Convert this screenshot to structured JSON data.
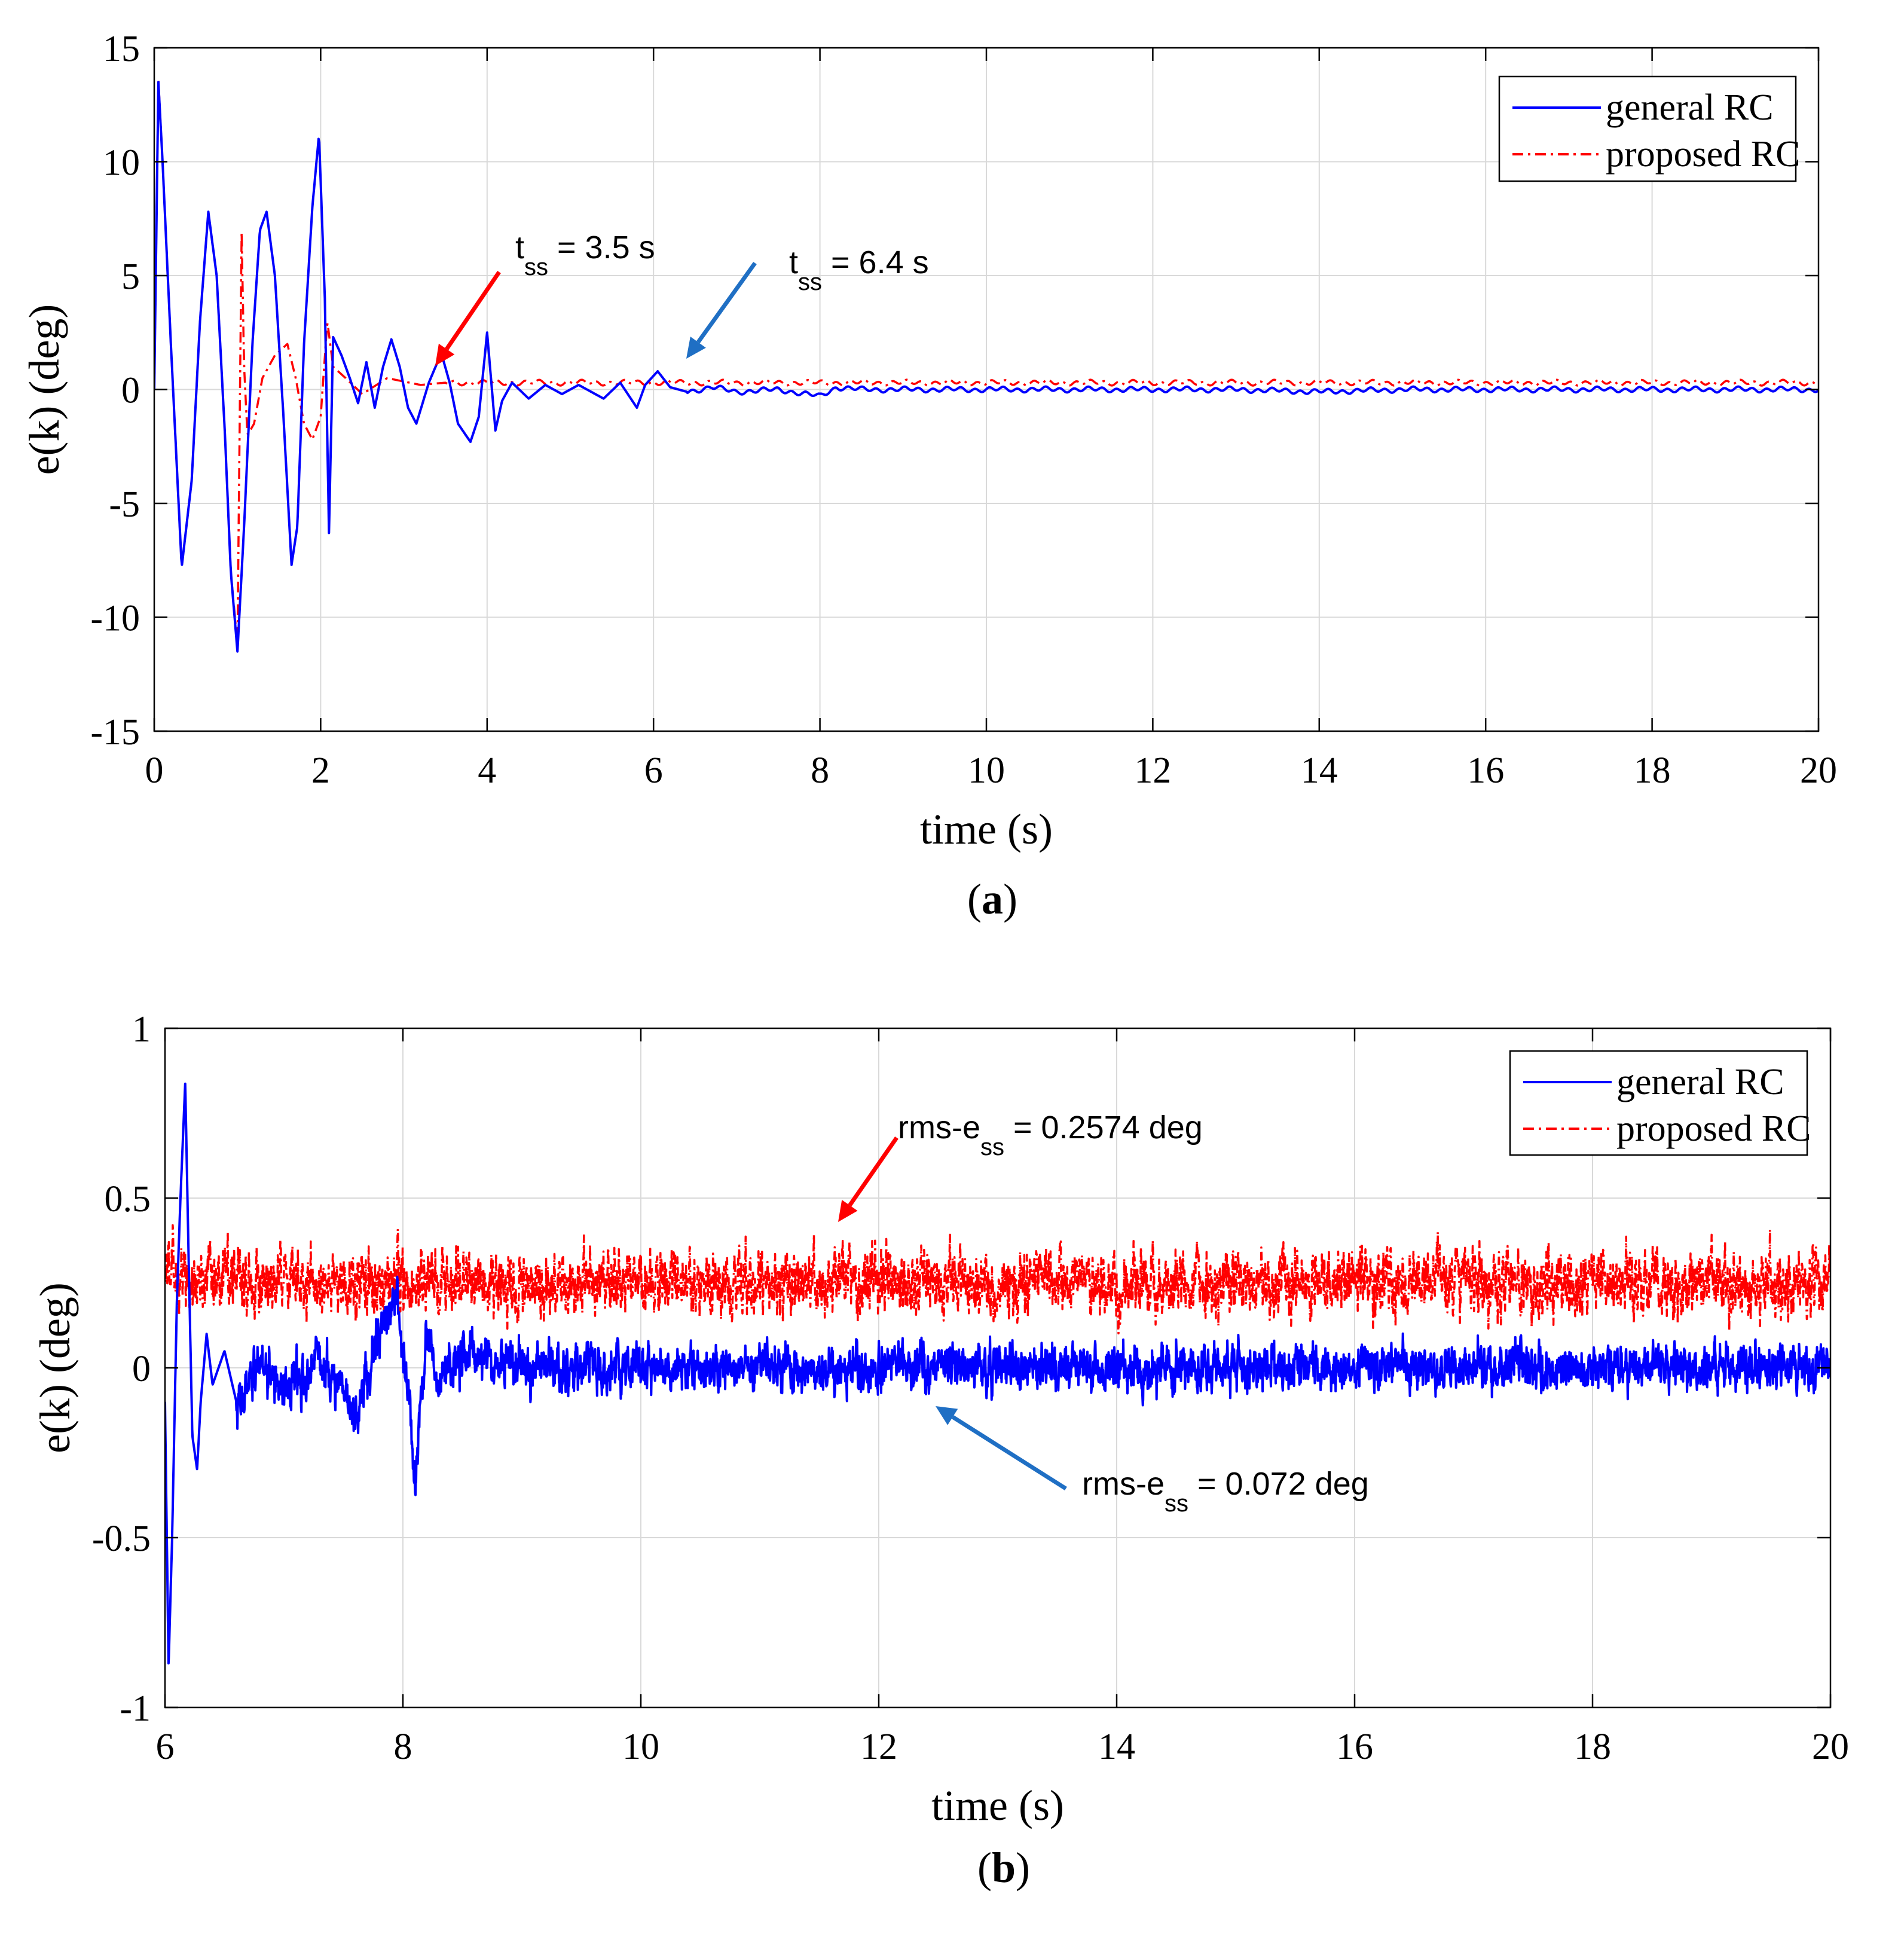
{
  "colors": {
    "general": "#0000ff",
    "proposed": "#ff0000",
    "arrow_red": "#ff0000",
    "arrow_blue": "#1f6fc4",
    "grid": "#d9d9d9",
    "axis": "#000000"
  },
  "chart_data": [
    {
      "type": "line",
      "panel_label": "a",
      "title": "",
      "xlabel": "time (s)",
      "ylabel": "e(k) (deg)",
      "xlim": [
        0,
        20
      ],
      "ylim": [
        -15,
        15
      ],
      "xticks": [
        0,
        2,
        4,
        6,
        8,
        10,
        12,
        14,
        16,
        18,
        20
      ],
      "yticks": [
        15,
        10,
        5,
        0,
        -5,
        -10,
        -15
      ],
      "grid": true,
      "legend_position": "top-right",
      "series": [
        {
          "name": "general RC",
          "style": "solid",
          "color": "#0000ff",
          "x": [
            0,
            0.05,
            0.1,
            0.2,
            0.33,
            0.45,
            0.55,
            0.65,
            0.75,
            0.85,
            0.92,
            1.0,
            1.08,
            1.18,
            1.27,
            1.35,
            1.45,
            1.55,
            1.65,
            1.72,
            1.8,
            1.9,
            1.98,
            2.05,
            2.1,
            2.15,
            2.25,
            2.35,
            2.45,
            2.55,
            2.65,
            2.75,
            2.85,
            2.95,
            3.05,
            3.15,
            3.3,
            3.45,
            3.55,
            3.65,
            3.8,
            3.9,
            4.0,
            4.1,
            4.18,
            4.3,
            4.5,
            4.7,
            4.9,
            5.1,
            5.4,
            5.6,
            5.8,
            5.9,
            6.05,
            6.2,
            6.4,
            6.7,
            7.0,
            7.5,
            8.0,
            8.2,
            8.5,
            9.0,
            10.0,
            11.0,
            12.0,
            13.0,
            14.0,
            15.0,
            16.0,
            17.0,
            18.0,
            19.0,
            20.0
          ],
          "values": [
            0,
            13.5,
            10,
            2,
            -7.8,
            -4,
            3,
            7.8,
            5,
            -2,
            -8,
            -11.5,
            -6,
            2,
            7,
            7.8,
            5,
            -1,
            -7.7,
            -6,
            2,
            8,
            11.2,
            4,
            -6.3,
            2.3,
            1.5,
            0.5,
            -0.6,
            1.2,
            -0.8,
            1,
            2.2,
            1,
            -0.8,
            -1.5,
            0.3,
            1.6,
            0.3,
            -1.5,
            -2.3,
            -1.2,
            2.5,
            -1.8,
            -0.5,
            0.3,
            -0.4,
            0.2,
            -0.2,
            0.2,
            -0.4,
            0.3,
            -0.8,
            0.2,
            0.8,
            0.1,
            -0.1,
            0.1,
            -0.1,
            0,
            -0.3,
            0.1,
            0,
            0,
            0,
            0,
            0,
            0,
            -0.1,
            0,
            0,
            0,
            0,
            0,
            0
          ]
        },
        {
          "name": "proposed RC",
          "style": "dashdot",
          "color": "#ff0000",
          "x": [
            0,
            0.05,
            0.1,
            0.2,
            0.33,
            0.45,
            0.55,
            0.65,
            0.75,
            0.85,
            0.92,
            1.0,
            1.05,
            1.08,
            1.12,
            1.2,
            1.3,
            1.45,
            1.6,
            1.7,
            1.8,
            1.9,
            2.0,
            2.08,
            2.15,
            2.3,
            2.5,
            2.8,
            3.2,
            3.5,
            4.0,
            5.0,
            6.0,
            8.0,
            10.0,
            12.0,
            14.0,
            16.0,
            18.0,
            20.0
          ],
          "values": [
            0,
            13.6,
            10,
            2,
            -7.8,
            -4,
            3,
            7.8,
            5,
            -2,
            -8,
            -11.2,
            6.9,
            1,
            -2,
            -1.5,
            0.5,
            1.5,
            2,
            0.5,
            -1.5,
            -2.2,
            -1.2,
            3,
            1,
            0.5,
            -0.2,
            0.5,
            0.2,
            0.3,
            0.3,
            0.3,
            0.3,
            0.3,
            0.3,
            0.3,
            0.3,
            0.3,
            0.3,
            0.3
          ]
        }
      ],
      "annotations": [
        {
          "base": "t",
          "sub": "ss",
          "rest": " = 3.5 s",
          "color": "red"
        },
        {
          "base": "t",
          "sub": "ss",
          "rest": " = 6.4 s",
          "color": "blue"
        }
      ]
    },
    {
      "type": "line",
      "panel_label": "b",
      "title": "",
      "xlabel": "time (s)",
      "ylabel": "e(k) (deg)",
      "xlim": [
        6,
        20
      ],
      "ylim": [
        -1,
        1
      ],
      "xticks": [
        6,
        8,
        10,
        12,
        14,
        16,
        18,
        20
      ],
      "yticks": [
        1,
        0.5,
        0,
        -0.5,
        -1
      ],
      "grid": true,
      "legend_position": "top-right",
      "series": [
        {
          "name": "general RC",
          "style": "solid",
          "color": "#0000ff",
          "x": [
            6.0,
            6.03,
            6.06,
            6.1,
            6.13,
            6.17,
            6.2,
            6.23,
            6.27,
            6.3,
            6.35,
            6.4,
            6.5,
            6.6,
            6.8,
            7.0,
            7.3,
            7.6,
            7.8,
            7.95,
            8.05,
            8.1,
            8.15,
            8.2,
            8.3,
            8.5,
            8.8,
            20.0
          ],
          "values": [
            -0.1,
            -0.88,
            -0.5,
            0.2,
            0.5,
            0.84,
            0.3,
            -0.2,
            -0.3,
            -0.1,
            0.1,
            -0.05,
            0.05,
            -0.1,
            0.02,
            -0.08,
            0.03,
            -0.15,
            0.1,
            0.22,
            -0.1,
            -0.32,
            -0.1,
            0.1,
            -0.05,
            0.05,
            0.0,
            0.0
          ],
          "noise_amp": 0.07,
          "noise_from": 6.6
        },
        {
          "name": "proposed RC",
          "style": "dashdot",
          "color": "#ff0000",
          "x": [
            6.0,
            6.5,
            20.0
          ],
          "values": [
            0.3,
            0.25,
            0.25
          ],
          "noise_amp": 0.1,
          "noise_from": 6.0
        }
      ],
      "annotations": [
        {
          "base": "rms-e",
          "sub": "ss",
          "rest": " = 0.2574 deg",
          "color": "red"
        },
        {
          "base": "rms-e",
          "sub": "ss",
          "rest": " = 0.072 deg",
          "color": "blue"
        }
      ]
    }
  ]
}
